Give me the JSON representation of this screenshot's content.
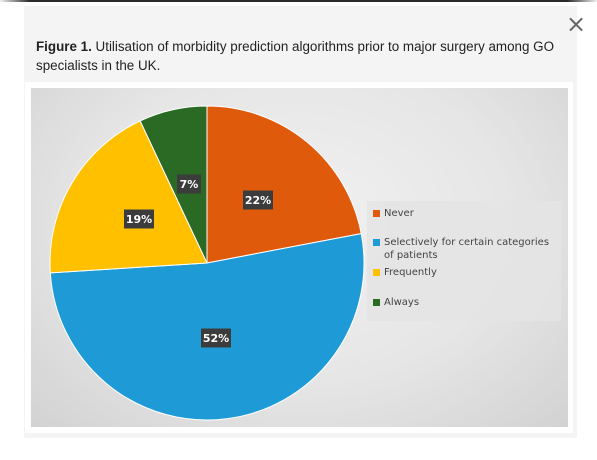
{
  "caption": {
    "label": "Figure 1.",
    "text": "Utilisation of morbidity prediction algorithms prior to major surgery among GO specialists in the UK."
  },
  "close_icon": "×",
  "chart_data": {
    "type": "pie",
    "title": "",
    "legend_position": "right",
    "slices": [
      {
        "name": "Never",
        "value": 22,
        "label": "22%",
        "color": "#e05a0c"
      },
      {
        "name": "Selectively for certain categories of patients",
        "value": 52,
        "label": "52%",
        "color": "#1e9bd7"
      },
      {
        "name": "Frequently",
        "value": 19,
        "label": "19%",
        "color": "#ffc000"
      },
      {
        "name": "Always",
        "value": 7,
        "label": "7%",
        "color": "#2a6a25"
      }
    ]
  }
}
